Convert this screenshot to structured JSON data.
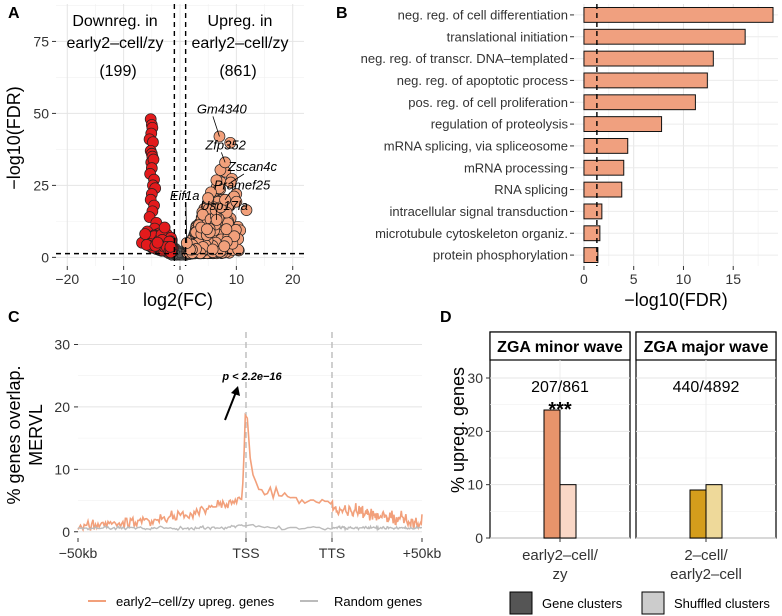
{
  "panels": {
    "a": "A",
    "b": "B",
    "c": "C",
    "d": "D"
  },
  "chart_data": [
    {
      "type": "scatter",
      "title": "",
      "xlabel": "log2(FC)",
      "ylabel": "−log10(FDR)",
      "xlim": [
        -22,
        22
      ],
      "ylim": [
        -3,
        88
      ],
      "xticks": [
        -20,
        -10,
        0,
        10,
        20
      ],
      "yticks": [
        0,
        25,
        50,
        75
      ],
      "threshold_lines": {
        "x": [
          -1,
          1
        ],
        "y": [
          1.3
        ]
      },
      "annotations": {
        "down_lines": [
          "Downreg. in",
          "early2–cell/zy",
          "(199)"
        ],
        "up_lines": [
          "Upreg. in",
          "early2–cell/zy",
          "(861)"
        ]
      },
      "labels": [
        {
          "gene": "Gm4340",
          "x": 7.0,
          "y": 42.0,
          "tx": 3.0,
          "ty": 50.0
        },
        {
          "gene": "Zfp352",
          "x": 8.0,
          "y": 33.0,
          "tx": 4.5,
          "ty": 37.5
        },
        {
          "gene": "Zscan4c",
          "x": 9.0,
          "y": 26.0,
          "tx": 8.5,
          "ty": 30.0
        },
        {
          "gene": "Pramef25",
          "x": 8.0,
          "y": 20.0,
          "tx": 6.0,
          "ty": 23.5
        },
        {
          "gene": "Usp17la",
          "x": 6.5,
          "y": 13.0,
          "tx": 3.6,
          "ty": 16.5
        },
        {
          "gene": "Eif1a",
          "x": 1.2,
          "y": 5.0,
          "tx": -1.8,
          "ty": 20.0
        }
      ],
      "down_color": "#e31a1c",
      "up_color": "#f2a07b",
      "ns_color": "#555555"
    },
    {
      "type": "bar",
      "orientation": "horizontal",
      "xlabel": "−log10(FDR)",
      "xlim": [
        -1,
        19.5
      ],
      "xticks": [
        0,
        5,
        10,
        15
      ],
      "threshold": 1.3,
      "categories": [
        "neg. reg. of cell differentiation",
        "translational initiation",
        "neg. reg. of transcr. DNA–templated",
        "neg. reg. of apoptotic process",
        "pos. reg. of cell proliferation",
        "regulation of proteolysis",
        "mRNA splicing, via spliceosome",
        "mRNA processing",
        "RNA splicing",
        "intracellular signal transduction",
        "microtubule cytoskeleton organiz.",
        "protein phosphorylation"
      ],
      "values": [
        19.0,
        16.2,
        13.0,
        12.4,
        11.2,
        7.8,
        4.4,
        4.0,
        3.8,
        1.8,
        1.6,
        1.4
      ],
      "bar_color": "#f0a07f"
    },
    {
      "type": "line",
      "ylabel_lines": [
        "% genes overlap.",
        "MERVL"
      ],
      "ylim": [
        -1,
        32
      ],
      "yticks": [
        0,
        10,
        20,
        30
      ],
      "xtick_labels": [
        "−50kb",
        "TSS",
        "TTS",
        "+50kb"
      ],
      "annotation": "p < 2.2e−16",
      "series": [
        {
          "name": "early2–cell/zy upreg. genes",
          "color": "#f2a07b",
          "profile": [
            1.2,
            1.6,
            2.1,
            2.5,
            3.4,
            5.0,
            16.6,
            8.0,
            6.3,
            5.2,
            4.3,
            3.5,
            2.4,
            1.6,
            1.2
          ]
        },
        {
          "name": "Random genes",
          "color": "#bbbbbb",
          "profile": [
            0.5,
            0.6,
            0.7,
            0.8,
            1.0,
            1.5,
            0.9,
            0.7,
            0.6,
            0.5
          ]
        }
      ]
    },
    {
      "type": "bar",
      "ylabel": "% upreg. genes",
      "ylim": [
        0,
        33
      ],
      "yticks": [
        0,
        10,
        20,
        30
      ],
      "facets": [
        {
          "title": "ZGA minor wave",
          "category": [
            "early2–cell/",
            "zy"
          ],
          "gene_clusters": 24,
          "shuffled_clusters": 10,
          "ratio": "207/861",
          "significance": "***",
          "colors": [
            "#e8946b",
            "#f9d7c6"
          ]
        },
        {
          "title": "ZGA major wave",
          "category": [
            "2–cell/",
            "early2–cell"
          ],
          "gene_clusters": 9,
          "shuffled_clusters": 10,
          "ratio": "440/4892",
          "significance": "",
          "colors": [
            "#d49d1c",
            "#eed99a"
          ]
        }
      ],
      "legend": [
        "Gene clusters",
        "Shuffled clusters"
      ]
    }
  ]
}
